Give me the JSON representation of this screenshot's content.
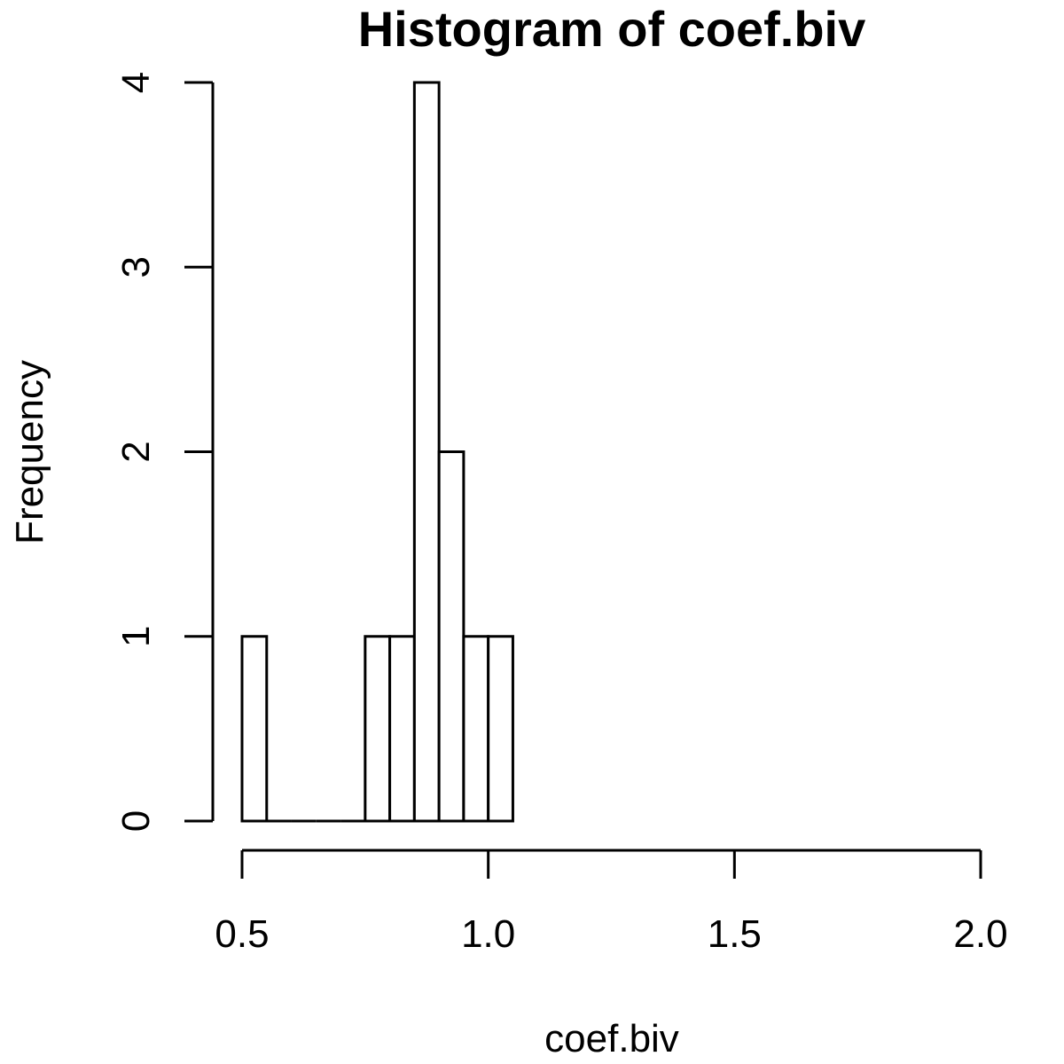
{
  "chart_data": {
    "type": "bar",
    "title": "Histogram of coef.biv",
    "xlabel": "coef.biv",
    "ylabel": "Frequency",
    "bins": [
      {
        "start": 0.5,
        "end": 0.55,
        "count": 1
      },
      {
        "start": 0.55,
        "end": 0.6,
        "count": 0
      },
      {
        "start": 0.6,
        "end": 0.65,
        "count": 0
      },
      {
        "start": 0.65,
        "end": 0.7,
        "count": 0
      },
      {
        "start": 0.7,
        "end": 0.75,
        "count": 0
      },
      {
        "start": 0.75,
        "end": 0.8,
        "count": 1
      },
      {
        "start": 0.8,
        "end": 0.85,
        "count": 1
      },
      {
        "start": 0.85,
        "end": 0.9,
        "count": 4
      },
      {
        "start": 0.9,
        "end": 0.95,
        "count": 2
      },
      {
        "start": 0.95,
        "end": 1.0,
        "count": 1
      },
      {
        "start": 1.0,
        "end": 1.05,
        "count": 1
      }
    ],
    "xlim": [
      0.5,
      2.0
    ],
    "ylim": [
      0,
      4
    ],
    "xticks": [
      "0.5",
      "1.0",
      "1.5",
      "2.0"
    ],
    "yticks": [
      "0",
      "1",
      "2",
      "3",
      "4"
    ],
    "grid": false
  }
}
